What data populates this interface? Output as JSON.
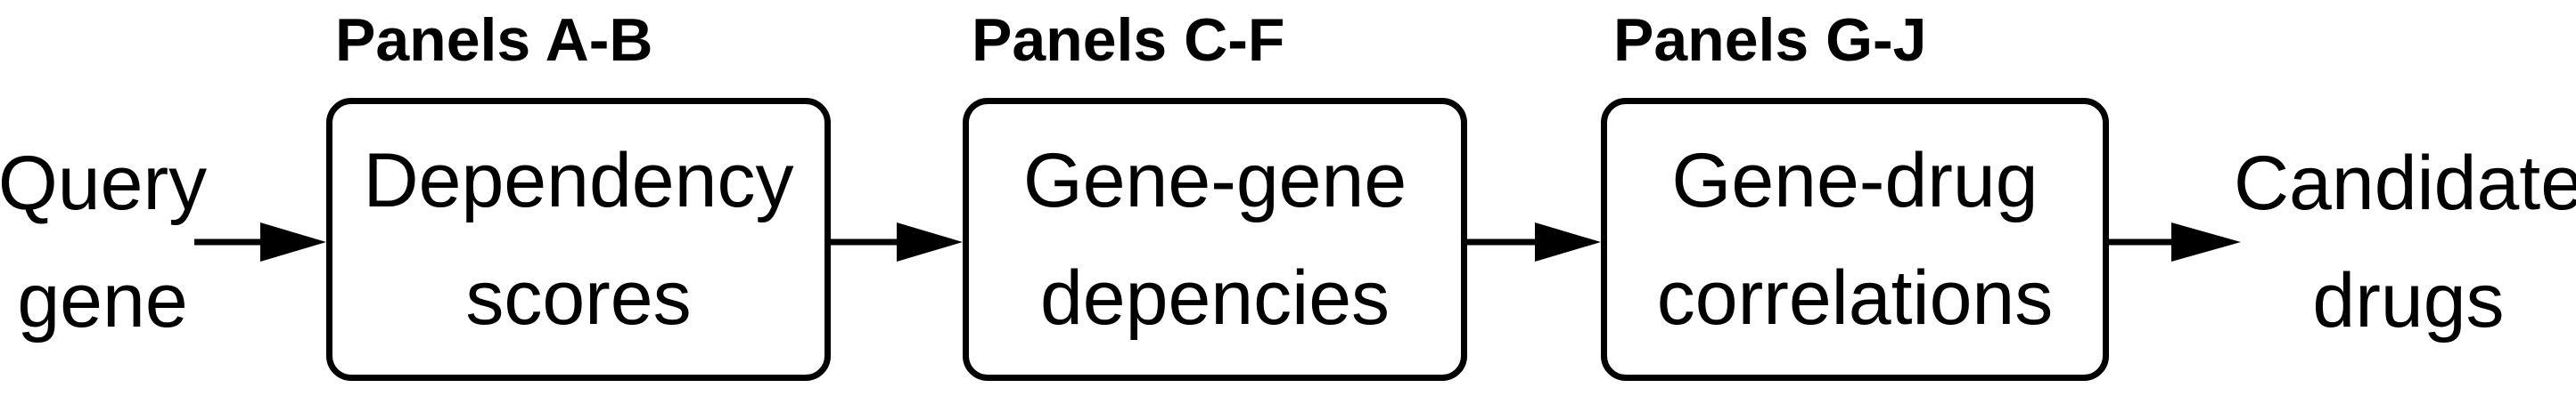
{
  "input": {
    "line1": "Query",
    "line2": "gene"
  },
  "steps": [
    {
      "panel_label": "Panels A-B",
      "line1": "Dependency",
      "line2": "scores"
    },
    {
      "panel_label": "Panels C-F",
      "line1": "Gene-gene",
      "line2": "depencies"
    },
    {
      "panel_label": "Panels G-J",
      "line1": "Gene-drug",
      "line2": "correlations"
    }
  ],
  "output": {
    "line1": "Candidate",
    "line2": "drugs"
  },
  "colors": {
    "stroke": "#000000",
    "background": "#ffffff"
  }
}
